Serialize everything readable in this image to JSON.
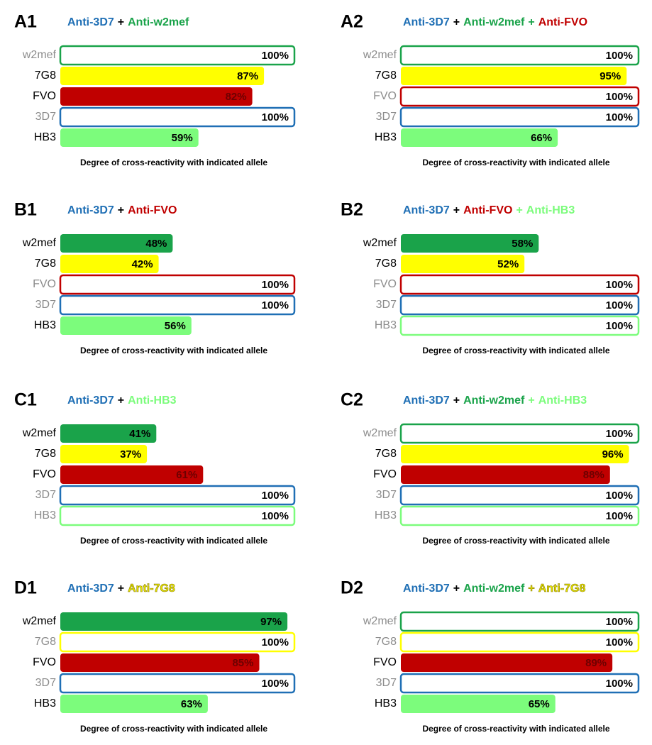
{
  "chart_data": [
    {
      "type": "bar",
      "orientation": "horizontal",
      "panel_label": "A1",
      "title": [
        "Anti-3D7",
        "+",
        "Anti-w2mef"
      ],
      "title_colors": [
        "#1f6fb5",
        "#000000",
        "#1aa34a"
      ],
      "xlabel": "Degree of cross-reactivity with indicated allele",
      "categories": [
        "w2mef",
        "7G8",
        "FVO",
        "3D7",
        "HB3"
      ],
      "values": [
        100,
        87,
        82,
        100,
        59
      ],
      "value_labels": [
        "100%",
        "87%",
        "82%",
        "100%",
        "59%"
      ],
      "colors": [
        "#1aa34a",
        "#ffff00",
        "#c00000",
        "#1f6fb5",
        "#7cfc7c"
      ],
      "outlined": [
        true,
        false,
        false,
        true,
        false
      ],
      "xlim": [
        0,
        100
      ]
    },
    {
      "type": "bar",
      "orientation": "horizontal",
      "panel_label": "A2",
      "title": [
        "Anti-3D7",
        "+",
        "Anti-w2mef",
        "+",
        "Anti-FVO"
      ],
      "title_colors": [
        "#1f6fb5",
        "#000000",
        "#1aa34a",
        "#1aa34a",
        "#c00000"
      ],
      "xlabel": "Degree of cross-reactivity with indicated allele",
      "categories": [
        "w2mef",
        "7G8",
        "FVO",
        "3D7",
        "HB3"
      ],
      "values": [
        100,
        95,
        100,
        100,
        66
      ],
      "value_labels": [
        "100%",
        "95%",
        "100%",
        "100%",
        "66%"
      ],
      "colors": [
        "#1aa34a",
        "#ffff00",
        "#c00000",
        "#1f6fb5",
        "#7cfc7c"
      ],
      "outlined": [
        true,
        false,
        true,
        true,
        false
      ],
      "xlim": [
        0,
        100
      ]
    },
    {
      "type": "bar",
      "orientation": "horizontal",
      "panel_label": "B1",
      "title": [
        "Anti-3D7",
        "+",
        "Anti-FVO"
      ],
      "title_colors": [
        "#1f6fb5",
        "#000000",
        "#c00000"
      ],
      "xlabel": "Degree of cross-reactivity with indicated allele",
      "categories": [
        "w2mef",
        "7G8",
        "FVO",
        "3D7",
        "HB3"
      ],
      "values": [
        48,
        42,
        100,
        100,
        56
      ],
      "value_labels": [
        "48%",
        "42%",
        "100%",
        "100%",
        "56%"
      ],
      "colors": [
        "#1aa34a",
        "#ffff00",
        "#c00000",
        "#1f6fb5",
        "#7cfc7c"
      ],
      "outlined": [
        false,
        false,
        true,
        true,
        false
      ],
      "xlim": [
        0,
        100
      ]
    },
    {
      "type": "bar",
      "orientation": "horizontal",
      "panel_label": "B2",
      "title": [
        "Anti-3D7",
        "+",
        "Anti-FVO",
        "+",
        "Anti-HB3"
      ],
      "title_colors": [
        "#1f6fb5",
        "#000000",
        "#c00000",
        "#7cfc7c",
        "#7cfc7c"
      ],
      "xlabel": "Degree of cross-reactivity with indicated allele",
      "categories": [
        "w2mef",
        "7G8",
        "FVO",
        "3D7",
        "HB3"
      ],
      "values": [
        58,
        52,
        100,
        100,
        100
      ],
      "value_labels": [
        "58%",
        "52%",
        "100%",
        "100%",
        "100%"
      ],
      "colors": [
        "#1aa34a",
        "#ffff00",
        "#c00000",
        "#1f6fb5",
        "#7cfc7c"
      ],
      "outlined": [
        false,
        false,
        true,
        true,
        true
      ],
      "xlim": [
        0,
        100
      ]
    },
    {
      "type": "bar",
      "orientation": "horizontal",
      "panel_label": "C1",
      "title": [
        "Anti-3D7",
        "+",
        "Anti-HB3"
      ],
      "title_colors": [
        "#1f6fb5",
        "#000000",
        "#7cfc7c"
      ],
      "xlabel": "Degree of cross-reactivity with indicated allele",
      "categories": [
        "w2mef",
        "7G8",
        "FVO",
        "3D7",
        "HB3"
      ],
      "values": [
        41,
        37,
        61,
        100,
        100
      ],
      "value_labels": [
        "41%",
        "37%",
        "61%",
        "100%",
        "100%"
      ],
      "colors": [
        "#1aa34a",
        "#ffff00",
        "#c00000",
        "#1f6fb5",
        "#7cfc7c"
      ],
      "outlined": [
        false,
        false,
        false,
        true,
        true
      ],
      "xlim": [
        0,
        100
      ]
    },
    {
      "type": "bar",
      "orientation": "horizontal",
      "panel_label": "C2",
      "title": [
        "Anti-3D7",
        "+",
        "Anti-w2mef",
        "+",
        "Anti-HB3"
      ],
      "title_colors": [
        "#1f6fb5",
        "#000000",
        "#1aa34a",
        "#7cfc7c",
        "#7cfc7c"
      ],
      "xlabel": "Degree of cross-reactivity with indicated allele",
      "categories": [
        "w2mef",
        "7G8",
        "FVO",
        "3D7",
        "HB3"
      ],
      "values": [
        100,
        96,
        88,
        100,
        100
      ],
      "value_labels": [
        "100%",
        "96%",
        "88%",
        "100%",
        "100%"
      ],
      "colors": [
        "#1aa34a",
        "#ffff00",
        "#c00000",
        "#1f6fb5",
        "#7cfc7c"
      ],
      "outlined": [
        true,
        false,
        false,
        true,
        true
      ],
      "xlim": [
        0,
        100
      ]
    },
    {
      "type": "bar",
      "orientation": "horizontal",
      "panel_label": "D1",
      "title": [
        "Anti-3D7",
        "+",
        "Anti-7G8"
      ],
      "title_colors": [
        "#1f6fb5",
        "#000000",
        "#e6e600"
      ],
      "xlabel": "Degree of cross-reactivity with indicated allele",
      "categories": [
        "w2mef",
        "7G8",
        "FVO",
        "3D7",
        "HB3"
      ],
      "values": [
        97,
        100,
        85,
        100,
        63
      ],
      "value_labels": [
        "97%",
        "100%",
        "85%",
        "100%",
        "63%"
      ],
      "colors": [
        "#1aa34a",
        "#ffff00",
        "#c00000",
        "#1f6fb5",
        "#7cfc7c"
      ],
      "outlined": [
        false,
        true,
        false,
        true,
        false
      ],
      "xlim": [
        0,
        100
      ]
    },
    {
      "type": "bar",
      "orientation": "horizontal",
      "panel_label": "D2",
      "title": [
        "Anti-3D7",
        "+",
        "Anti-w2mef",
        "+",
        "Anti-7G8"
      ],
      "title_colors": [
        "#1f6fb5",
        "#000000",
        "#1aa34a",
        "#e6e600",
        "#e6e600"
      ],
      "xlabel": "Degree of cross-reactivity with indicated allele",
      "categories": [
        "w2mef",
        "7G8",
        "FVO",
        "3D7",
        "HB3"
      ],
      "values": [
        100,
        100,
        89,
        100,
        65
      ],
      "value_labels": [
        "100%",
        "100%",
        "89%",
        "100%",
        "65%"
      ],
      "colors": [
        "#1aa34a",
        "#ffff00",
        "#c00000",
        "#1f6fb5",
        "#7cfc7c"
      ],
      "outlined": [
        true,
        true,
        false,
        true,
        false
      ],
      "xlim": [
        0,
        100
      ]
    }
  ]
}
